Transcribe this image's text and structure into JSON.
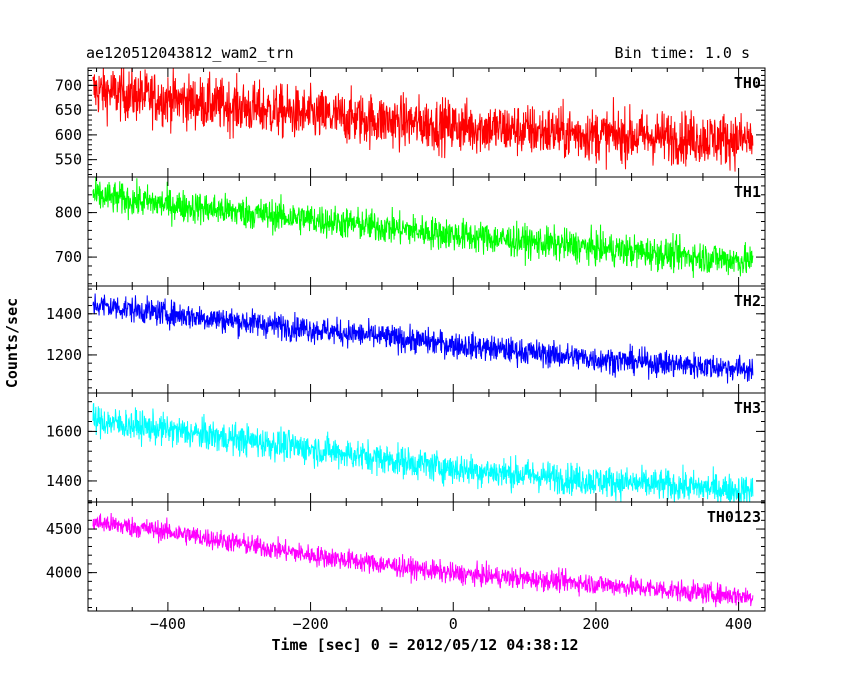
{
  "header": {
    "title": "ae120512043812_wam2_trn",
    "bin_time": "Bin time: 1.0 s"
  },
  "axes": {
    "xlabel": "Time [sec] 0 = 2012/05/12 04:38:12",
    "ylabel": "Counts/sec"
  },
  "chart_data": {
    "type": "line",
    "title": "ae120512043812_wam2_trn",
    "subtitle": "Bin time: 1.0 s",
    "xlabel": "Time [sec] 0 = 2012/05/12 04:38:12",
    "ylabel": "Counts/sec",
    "xlim": [
      -512,
      437
    ],
    "x_ticks": [
      -400,
      -200,
      0,
      200,
      400
    ],
    "x_range": [
      -505,
      420
    ],
    "grid": false,
    "panels": [
      {
        "name": "TH0",
        "color": "#ff0000",
        "ylim": [
          515,
          735
        ],
        "y_ticks": [
          550,
          600,
          650,
          700
        ],
        "trend": [
          [
            -505,
            690
          ],
          [
            -400,
            672
          ],
          [
            -200,
            640
          ],
          [
            0,
            618
          ],
          [
            200,
            600
          ],
          [
            420,
            590
          ]
        ],
        "noise": 38
      },
      {
        "name": "TH1",
        "color": "#00ff00",
        "ylim": [
          635,
          880
        ],
        "y_ticks": [
          700,
          800
        ],
        "trend": [
          [
            -505,
            838
          ],
          [
            -400,
            818
          ],
          [
            -200,
            785
          ],
          [
            0,
            750
          ],
          [
            200,
            720
          ],
          [
            420,
            690
          ]
        ],
        "noise": 26
      },
      {
        "name": "TH2",
        "color": "#0000ff",
        "ylim": [
          1015,
          1535
        ],
        "y_ticks": [
          1200,
          1400
        ],
        "trend": [
          [
            -505,
            1445
          ],
          [
            -400,
            1400
          ],
          [
            -200,
            1325
          ],
          [
            0,
            1250
          ],
          [
            200,
            1180
          ],
          [
            420,
            1130
          ]
        ],
        "noise": 45
      },
      {
        "name": "TH3",
        "color": "#00ffff",
        "ylim": [
          1315,
          1755
        ],
        "y_ticks": [
          1400,
          1600
        ],
        "trend": [
          [
            -505,
            1645
          ],
          [
            -400,
            1605
          ],
          [
            -200,
            1530
          ],
          [
            0,
            1450
          ],
          [
            200,
            1400
          ],
          [
            420,
            1360
          ]
        ],
        "noise": 45
      },
      {
        "name": "TH0123",
        "color": "#ff00ff",
        "ylim": [
          3560,
          4810
        ],
        "y_ticks": [
          4000,
          4500
        ],
        "trend": [
          [
            -505,
            4580
          ],
          [
            -400,
            4470
          ],
          [
            -200,
            4200
          ],
          [
            0,
            3990
          ],
          [
            200,
            3870
          ],
          [
            420,
            3720
          ]
        ],
        "noise": 85
      }
    ]
  }
}
